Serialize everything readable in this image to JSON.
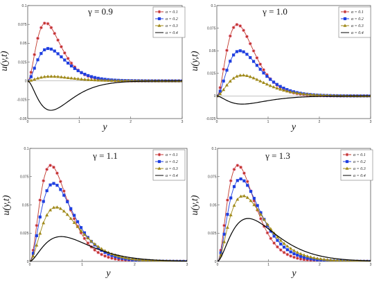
{
  "chart_data": [
    {
      "type": "line",
      "panel": "top-left",
      "gamma_label": "γ = 0.9",
      "xlabel": "y",
      "ylabel": "u(y,t)",
      "xlim": [
        0,
        3
      ],
      "ylim": [
        -0.05,
        0.1
      ],
      "x_ticks": [
        "0",
        "1",
        "2",
        "3"
      ],
      "y_ticks": [
        "-0.05",
        "-0.025",
        "0",
        "0.025",
        "0.05",
        "0.075",
        "0.1"
      ],
      "legend_placement": "top-right",
      "series": [
        {
          "name": "α = 0.1",
          "color": "#c0392b",
          "marker": "circle",
          "peak_x": 0.35,
          "peak_y": 0.077,
          "decay": 2.2
        },
        {
          "name": "α = 0.2",
          "color": "#1f3fe0",
          "marker": "square",
          "peak_x": 0.4,
          "peak_y": 0.043,
          "decay": 2.1
        },
        {
          "name": "α = 0.3",
          "color": "#a08a1a",
          "marker": "triangle",
          "peak_x": 0.45,
          "peak_y": 0.006,
          "decay": 2.0
        },
        {
          "name": "α = 0.4",
          "color": "#000000",
          "marker": "none",
          "peak_x": 0.45,
          "peak_y": -0.039,
          "decay": 1.9
        }
      ]
    },
    {
      "type": "line",
      "panel": "top-right",
      "gamma_label": "γ = 1.0",
      "xlabel": "y",
      "ylabel": "u(y,t)",
      "xlim": [
        0,
        3
      ],
      "ylim": [
        -0.025,
        0.1
      ],
      "x_ticks": [
        "0",
        "1",
        "2",
        "3"
      ],
      "y_ticks": [
        "-0.025",
        "0",
        "0.025",
        "0.05",
        "0.075",
        "0.1"
      ],
      "legend_placement": "top-right",
      "series": [
        {
          "name": "α = 0.1",
          "color": "#c0392b",
          "marker": "circle",
          "peak_x": 0.4,
          "peak_y": 0.079,
          "decay": 2.2
        },
        {
          "name": "α = 0.2",
          "color": "#1f3fe0",
          "marker": "square",
          "peak_x": 0.45,
          "peak_y": 0.05,
          "decay": 2.1
        },
        {
          "name": "α = 0.3",
          "color": "#a08a1a",
          "marker": "triangle",
          "peak_x": 0.5,
          "peak_y": 0.023,
          "decay": 2.0
        },
        {
          "name": "α = 0.4",
          "color": "#000000",
          "marker": "none",
          "peak_x": 0.5,
          "peak_y": -0.009,
          "decay": 1.8
        }
      ]
    },
    {
      "type": "line",
      "panel": "bottom-left",
      "gamma_label": "γ = 1.1",
      "xlabel": "y",
      "ylabel": "u(y,t)",
      "xlim": [
        0,
        3
      ],
      "ylim": [
        0,
        0.1
      ],
      "x_ticks": [
        "0",
        "1",
        "2",
        "3"
      ],
      "y_ticks": [
        "0",
        "0.025",
        "0.05",
        "0.075",
        "0.1"
      ],
      "legend_placement": "top-right",
      "series": [
        {
          "name": "α = 0.1",
          "color": "#c0392b",
          "marker": "circle",
          "peak_x": 0.4,
          "peak_y": 0.085,
          "decay": 2.2
        },
        {
          "name": "α = 0.2",
          "color": "#1f3fe0",
          "marker": "square",
          "peak_x": 0.45,
          "peak_y": 0.069,
          "decay": 2.1
        },
        {
          "name": "α = 0.3",
          "color": "#a08a1a",
          "marker": "triangle",
          "peak_x": 0.5,
          "peak_y": 0.048,
          "decay": 2.0
        },
        {
          "name": "α = 0.4",
          "color": "#000000",
          "marker": "none",
          "peak_x": 0.6,
          "peak_y": 0.022,
          "decay": 1.8
        }
      ]
    },
    {
      "type": "line",
      "panel": "bottom-right",
      "gamma_label": "γ = 1.3",
      "xlabel": "y",
      "ylabel": "u(y,t)",
      "xlim": [
        0,
        3
      ],
      "ylim": [
        0,
        0.1
      ],
      "x_ticks": [
        "0",
        "1",
        "2",
        "3"
      ],
      "y_ticks": [
        "0",
        "0.025",
        "0.05",
        "0.075",
        "0.1"
      ],
      "legend_placement": "top-right",
      "series": [
        {
          "name": "α = 0.1",
          "color": "#c0392b",
          "marker": "circle",
          "peak_x": 0.4,
          "peak_y": 0.085,
          "decay": 2.2
        },
        {
          "name": "α = 0.2",
          "color": "#1f3fe0",
          "marker": "square",
          "peak_x": 0.45,
          "peak_y": 0.073,
          "decay": 2.1
        },
        {
          "name": "α = 0.3",
          "color": "#a08a1a",
          "marker": "triangle",
          "peak_x": 0.5,
          "peak_y": 0.058,
          "decay": 2.0
        },
        {
          "name": "α = 0.4",
          "color": "#000000",
          "marker": "none",
          "peak_x": 0.6,
          "peak_y": 0.038,
          "decay": 1.8
        }
      ]
    }
  ]
}
